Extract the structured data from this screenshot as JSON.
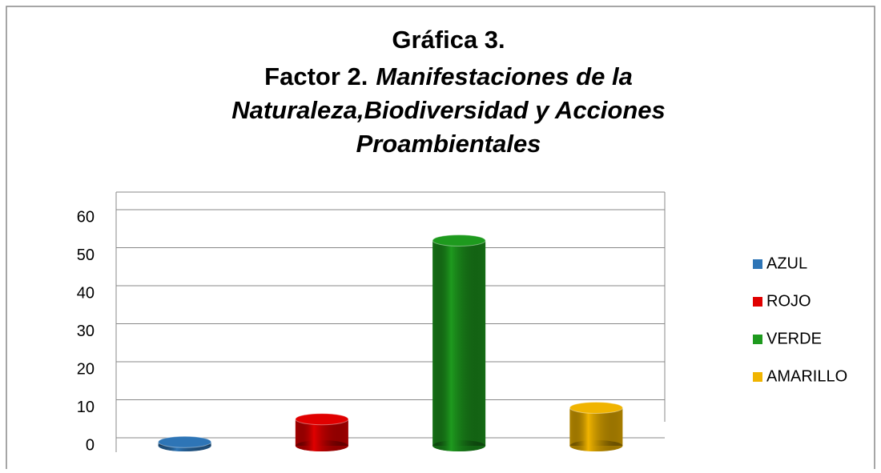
{
  "chart_data": {
    "type": "bar",
    "title": [
      "Gráfica 3.",
      "Factor 2.",
      "Manifestaciones de la",
      "Naturaleza,Biodiversidad  y Acciones",
      "Proambientales"
    ],
    "categories": [
      "AZUL",
      "ROJO",
      "VERDE",
      "AMARILLO"
    ],
    "values": [
      1,
      7,
      54,
      10
    ],
    "colors": [
      "#2e75b6",
      "#e00000",
      "#1e9a1e",
      "#f0b400"
    ],
    "ylim": [
      0,
      60
    ],
    "yticks": [
      0,
      10,
      20,
      30,
      40,
      50,
      60
    ],
    "grid": true,
    "legend": "right"
  }
}
